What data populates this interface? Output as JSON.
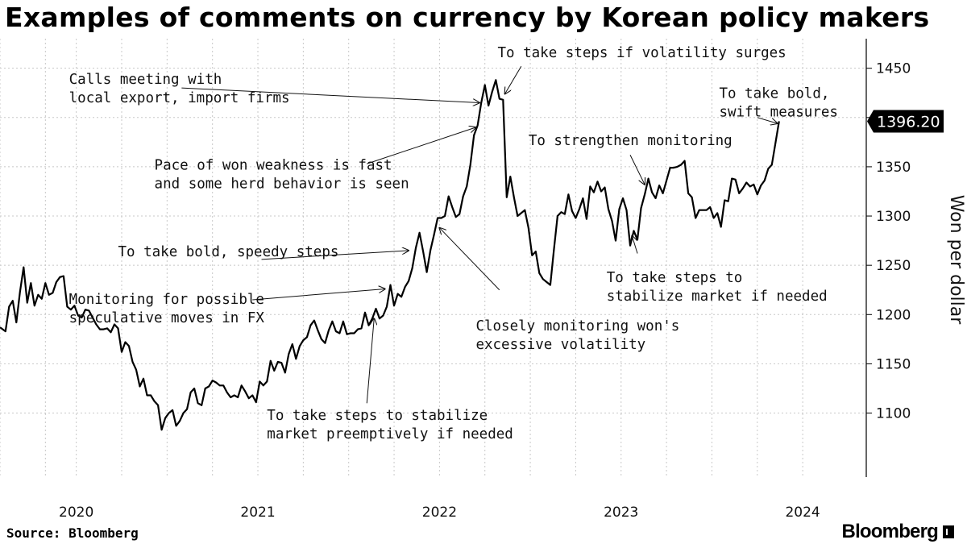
{
  "header": {
    "title": "Examples of comments on currency by Korean policy makers"
  },
  "footer": {
    "source": "Source: Bloomberg",
    "brand": "Bloomberg"
  },
  "colors": {
    "series": "#000000",
    "grid": "#c8c8c8",
    "last_value_box": "#000000"
  },
  "chart_data": {
    "type": "line",
    "title": "Examples of comments on currency by Korean policy makers",
    "xlabel": "",
    "ylabel": "Won per dollar",
    "ylim": [
      1035,
      1480
    ],
    "xlim": [
      2019.58,
      2024.35
    ],
    "y_ticks": [
      1100,
      1150,
      1200,
      1250,
      1300,
      1350,
      1400,
      1450
    ],
    "x_ticks": [
      {
        "label": "2020",
        "x": 2020.0
      },
      {
        "label": "2021",
        "x": 2021.0
      },
      {
        "label": "2022",
        "x": 2022.0
      },
      {
        "label": "2023",
        "x": 2023.0
      },
      {
        "label": "2024",
        "x": 2024.0
      }
    ],
    "x_grid": [
      2019.58,
      2019.83,
      2020.0,
      2020.25,
      2020.5,
      2020.75,
      2021.0,
      2021.25,
      2021.5,
      2021.75,
      2022.0,
      2022.25,
      2022.5,
      2022.75,
      2023.0,
      2023.25,
      2023.5,
      2023.75,
      2024.0
    ],
    "grid": true,
    "last_value": {
      "label": "1396.20",
      "value": 1396.2
    },
    "series": [
      {
        "points": [
          [
            2019.58,
            1187
          ],
          [
            2019.61,
            1183
          ],
          [
            2019.63,
            1208
          ],
          [
            2019.65,
            1214
          ],
          [
            2019.67,
            1192
          ],
          [
            2019.69,
            1223
          ],
          [
            2019.71,
            1248
          ],
          [
            2019.73,
            1212
          ],
          [
            2019.75,
            1232
          ],
          [
            2019.77,
            1209
          ],
          [
            2019.79,
            1220
          ],
          [
            2019.81,
            1216
          ],
          [
            2019.83,
            1232
          ],
          [
            2019.85,
            1220
          ],
          [
            2019.87,
            1222
          ],
          [
            2019.89,
            1233
          ],
          [
            2019.91,
            1238
          ],
          [
            2019.93,
            1239
          ],
          [
            2019.95,
            1208
          ],
          [
            2019.97,
            1205
          ],
          [
            2019.99,
            1209
          ],
          [
            2020.01,
            1199
          ],
          [
            2020.03,
            1197
          ],
          [
            2020.05,
            1205
          ],
          [
            2020.07,
            1204
          ],
          [
            2020.09,
            1197
          ],
          [
            2020.11,
            1190
          ],
          [
            2020.13,
            1185
          ],
          [
            2020.15,
            1185
          ],
          [
            2020.17,
            1186
          ],
          [
            2020.19,
            1182
          ],
          [
            2020.21,
            1190
          ],
          [
            2020.23,
            1186
          ],
          [
            2020.25,
            1162
          ],
          [
            2020.27,
            1172
          ],
          [
            2020.29,
            1168
          ],
          [
            2020.31,
            1152
          ],
          [
            2020.33,
            1144
          ],
          [
            2020.35,
            1127
          ],
          [
            2020.37,
            1135
          ],
          [
            2020.39,
            1118
          ],
          [
            2020.41,
            1118
          ],
          [
            2020.43,
            1112
          ],
          [
            2020.45,
            1108
          ],
          [
            2020.47,
            1083
          ],
          [
            2020.49,
            1095
          ],
          [
            2020.51,
            1100
          ],
          [
            2020.53,
            1103
          ],
          [
            2020.55,
            1087
          ],
          [
            2020.57,
            1092
          ],
          [
            2020.59,
            1100
          ],
          [
            2020.61,
            1104
          ],
          [
            2020.63,
            1121
          ],
          [
            2020.65,
            1125
          ],
          [
            2020.67,
            1110
          ],
          [
            2020.69,
            1108
          ],
          [
            2020.71,
            1125
          ],
          [
            2020.73,
            1127
          ],
          [
            2020.75,
            1133
          ],
          [
            2020.77,
            1131
          ],
          [
            2020.79,
            1128
          ],
          [
            2020.81,
            1128
          ],
          [
            2020.83,
            1121
          ],
          [
            2020.85,
            1116
          ],
          [
            2020.87,
            1118
          ],
          [
            2020.89,
            1116
          ],
          [
            2020.91,
            1128
          ],
          [
            2020.93,
            1122
          ],
          [
            2020.95,
            1115
          ],
          [
            2020.97,
            1118
          ],
          [
            2020.99,
            1111
          ],
          [
            2021.01,
            1132
          ],
          [
            2021.03,
            1128
          ],
          [
            2021.05,
            1132
          ],
          [
            2021.07,
            1153
          ],
          [
            2021.09,
            1143
          ],
          [
            2021.11,
            1152
          ],
          [
            2021.13,
            1151
          ],
          [
            2021.15,
            1141
          ],
          [
            2021.17,
            1160
          ],
          [
            2021.19,
            1170
          ],
          [
            2021.21,
            1155
          ],
          [
            2021.23,
            1168
          ],
          [
            2021.25,
            1174
          ],
          [
            2021.27,
            1177
          ],
          [
            2021.29,
            1189
          ],
          [
            2021.31,
            1194
          ],
          [
            2021.33,
            1184
          ],
          [
            2021.35,
            1175
          ],
          [
            2021.37,
            1171
          ],
          [
            2021.39,
            1184
          ],
          [
            2021.41,
            1193
          ],
          [
            2021.43,
            1183
          ],
          [
            2021.45,
            1181
          ],
          [
            2021.47,
            1193
          ],
          [
            2021.49,
            1180
          ],
          [
            2021.51,
            1181
          ],
          [
            2021.53,
            1181
          ],
          [
            2021.55,
            1185
          ],
          [
            2021.57,
            1186
          ],
          [
            2021.59,
            1202
          ],
          [
            2021.61,
            1189
          ],
          [
            2021.63,
            1196
          ],
          [
            2021.65,
            1206
          ],
          [
            2021.67,
            1196
          ],
          [
            2021.69,
            1199
          ],
          [
            2021.71,
            1208
          ],
          [
            2021.73,
            1230
          ],
          [
            2021.75,
            1209
          ],
          [
            2021.77,
            1221
          ],
          [
            2021.79,
            1218
          ],
          [
            2021.81,
            1228
          ],
          [
            2021.83,
            1234
          ],
          [
            2021.85,
            1247
          ],
          [
            2021.87,
            1268
          ],
          [
            2021.89,
            1283
          ],
          [
            2021.91,
            1264
          ],
          [
            2021.93,
            1243
          ],
          [
            2021.95,
            1265
          ],
          [
            2021.97,
            1281
          ],
          [
            2021.99,
            1298
          ],
          [
            2022.01,
            1298
          ],
          [
            2022.03,
            1300
          ],
          [
            2022.05,
            1320
          ],
          [
            2022.07,
            1309
          ],
          [
            2022.09,
            1299
          ],
          [
            2022.11,
            1302
          ],
          [
            2022.13,
            1320
          ],
          [
            2022.15,
            1330
          ],
          [
            2022.17,
            1352
          ],
          [
            2022.19,
            1382
          ],
          [
            2022.21,
            1392
          ],
          [
            2022.23,
            1415
          ],
          [
            2022.25,
            1433
          ],
          [
            2022.27,
            1412
          ],
          [
            2022.29,
            1426
          ],
          [
            2022.31,
            1438
          ],
          [
            2022.33,
            1419
          ],
          [
            2022.35,
            1418
          ],
          [
            2022.37,
            1319
          ],
          [
            2022.39,
            1340
          ],
          [
            2022.41,
            1319
          ],
          [
            2022.43,
            1300
          ],
          [
            2022.45,
            1303
          ],
          [
            2022.47,
            1306
          ],
          [
            2022.49,
            1288
          ],
          [
            2022.51,
            1260
          ],
          [
            2022.53,
            1264
          ],
          [
            2022.55,
            1242
          ],
          [
            2022.57,
            1236
          ],
          [
            2022.59,
            1233
          ],
          [
            2022.61,
            1230
          ],
          [
            2022.63,
            1266
          ],
          [
            2022.65,
            1300
          ],
          [
            2022.67,
            1304
          ],
          [
            2022.69,
            1302
          ],
          [
            2022.71,
            1322
          ],
          [
            2022.73,
            1305
          ],
          [
            2022.75,
            1298
          ],
          [
            2022.77,
            1307
          ],
          [
            2022.79,
            1318
          ],
          [
            2022.81,
            1297
          ],
          [
            2022.83,
            1330
          ],
          [
            2022.85,
            1324
          ],
          [
            2022.87,
            1335
          ],
          [
            2022.89,
            1325
          ],
          [
            2022.91,
            1329
          ],
          [
            2022.93,
            1307
          ],
          [
            2022.95,
            1295
          ],
          [
            2022.97,
            1275
          ],
          [
            2022.99,
            1307
          ],
          [
            2023.01,
            1318
          ],
          [
            2023.03,
            1306
          ],
          [
            2023.05,
            1270
          ],
          [
            2023.07,
            1285
          ],
          [
            2023.09,
            1276
          ],
          [
            2023.11,
            1308
          ],
          [
            2023.13,
            1322
          ],
          [
            2023.15,
            1338
          ],
          [
            2023.17,
            1324
          ],
          [
            2023.19,
            1318
          ],
          [
            2023.21,
            1331
          ],
          [
            2023.23,
            1323
          ],
          [
            2023.25,
            1336
          ],
          [
            2023.27,
            1349
          ],
          [
            2023.29,
            1349
          ],
          [
            2023.31,
            1350
          ],
          [
            2023.33,
            1352
          ],
          [
            2023.35,
            1356
          ],
          [
            2023.37,
            1323
          ],
          [
            2023.39,
            1319
          ],
          [
            2023.41,
            1298
          ],
          [
            2023.43,
            1306
          ],
          [
            2023.45,
            1306
          ],
          [
            2023.47,
            1306
          ],
          [
            2023.49,
            1309
          ],
          [
            2023.51,
            1298
          ],
          [
            2023.53,
            1303
          ],
          [
            2023.55,
            1289
          ],
          [
            2023.57,
            1316
          ],
          [
            2023.59,
            1315
          ],
          [
            2023.61,
            1338
          ],
          [
            2023.63,
            1337
          ],
          [
            2023.65,
            1323
          ],
          [
            2023.67,
            1328
          ],
          [
            2023.69,
            1334
          ],
          [
            2023.71,
            1330
          ],
          [
            2023.73,
            1332
          ],
          [
            2023.75,
            1322
          ],
          [
            2023.77,
            1331
          ],
          [
            2023.79,
            1336
          ],
          [
            2023.81,
            1348
          ],
          [
            2023.83,
            1352
          ],
          [
            2023.85,
            1374
          ],
          [
            2023.87,
            1396.2
          ]
        ]
      }
    ],
    "annotations": [
      {
        "lines": [
          "Calls meeting with",
          "local export, import firms"
        ],
        "text_x": 2019.96,
        "text_y": 1434,
        "arrow_from": [
          2020.58,
          1430
        ],
        "arrow_to": [
          2022.22,
          1415
        ]
      },
      {
        "lines": [
          "To take steps if volatility surges"
        ],
        "text_x": 2022.32,
        "text_y": 1461,
        "arrow_from": [
          2022.45,
          1452
        ],
        "arrow_to": [
          2022.36,
          1424
        ]
      },
      {
        "lines": [
          "Pace of won weakness is fast",
          "and some herd behavior is seen"
        ],
        "text_x": 2020.43,
        "text_y": 1347,
        "arrow_from": [
          2021.6,
          1353
        ],
        "arrow_to": [
          2022.2,
          1390
        ]
      },
      {
        "lines": [
          "To take bold,",
          "swift measures"
        ],
        "text_x": 2023.54,
        "text_y": 1420,
        "arrow_from": [
          2023.75,
          1400
        ],
        "arrow_to": [
          2023.86,
          1394
        ]
      },
      {
        "lines": [
          "To strengthen monitoring"
        ],
        "text_x": 2022.49,
        "text_y": 1372,
        "arrow_from": [
          2023.05,
          1362
        ],
        "arrow_to": [
          2023.13,
          1332
        ]
      },
      {
        "lines": [
          "To take bold, speedy steps"
        ],
        "text_x": 2020.23,
        "text_y": 1259,
        "arrow_from": [
          2021.02,
          1256
        ],
        "arrow_to": [
          2021.83,
          1265
        ]
      },
      {
        "lines": [
          "Monitoring for possible",
          "speculative moves in FX"
        ],
        "text_x": 2019.96,
        "text_y": 1211,
        "arrow_from": [
          2020.97,
          1215
        ],
        "arrow_to": [
          2021.7,
          1226
        ]
      },
      {
        "lines": [
          "Closely monitoring won's",
          "excessive volatility"
        ],
        "text_x": 2022.2,
        "text_y": 1184,
        "arrow_from": [
          2022.33,
          1225
        ],
        "arrow_to": [
          2022.0,
          1288
        ]
      },
      {
        "lines": [
          "To take steps to",
          "stabilize market if needed"
        ],
        "text_x": 2022.92,
        "text_y": 1233,
        "arrow_from": [
          2023.09,
          1262
        ],
        "arrow_to": [
          2023.06,
          1280
        ]
      },
      {
        "lines": [
          "To take steps to stabilize",
          "market preemptively if needed"
        ],
        "text_x": 2021.05,
        "text_y": 1093,
        "arrow_from": [
          2021.6,
          1110
        ],
        "arrow_to": [
          2021.64,
          1196
        ]
      }
    ]
  }
}
